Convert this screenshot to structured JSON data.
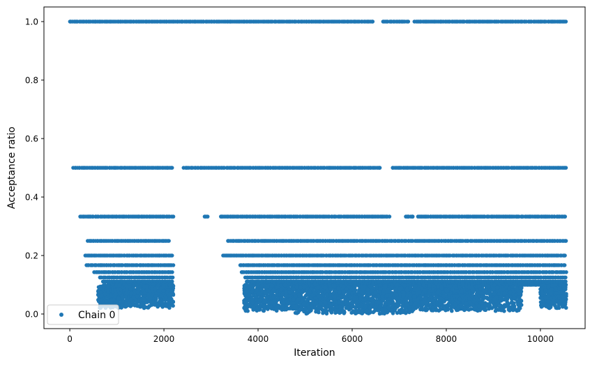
{
  "chart_data": {
    "type": "scatter",
    "xlabel": "Iteration",
    "ylabel": "Acceptance ratio",
    "xlim": [
      -550,
      10950
    ],
    "ylim": [
      -0.05,
      1.05
    ],
    "xticks": [
      0,
      2000,
      4000,
      6000,
      8000,
      10000
    ],
    "xtick_labels": [
      "0",
      "2000",
      "4000",
      "6000",
      "8000",
      "10000"
    ],
    "yticks": [
      0.0,
      0.2,
      0.4,
      0.6,
      0.8,
      1.0
    ],
    "ytick_labels": [
      "0.0",
      "0.2",
      "0.4",
      "0.6",
      "0.8",
      "1.0"
    ],
    "grid": false,
    "legend": {
      "position": "lower-left",
      "entries": [
        "Chain 0"
      ]
    },
    "series": [
      {
        "name": "Chain 0",
        "color": "#1f77b4",
        "marker": "circle",
        "levels": [
          {
            "y": 1.0,
            "x_ranges": [
              [
                0,
                6450
              ],
              [
                6650,
                7200
              ],
              [
                7300,
                10550
              ]
            ]
          },
          {
            "y": 0.5,
            "x_ranges": [
              [
                50,
                2200
              ],
              [
                2400,
                6600
              ],
              [
                6850,
                10550
              ]
            ]
          },
          {
            "y": 0.333,
            "x_ranges": [
              [
                200,
                2200
              ],
              [
                2850,
                2950
              ],
              [
                3200,
                6800
              ],
              [
                7100,
                7300
              ],
              [
                7400,
                10550
              ]
            ]
          },
          {
            "y": 0.25,
            "x_ranges": [
              [
                350,
                2150
              ],
              [
                3350,
                10550
              ]
            ]
          },
          {
            "y": 0.2,
            "x_ranges": [
              [
                300,
                2200
              ],
              [
                3250,
                10550
              ]
            ]
          },
          {
            "y": 0.167,
            "x_ranges": [
              [
                350,
                2200
              ],
              [
                3600,
                10550
              ]
            ]
          },
          {
            "y": 0.143,
            "x_ranges": [
              [
                500,
                2200
              ],
              [
                3650,
                10550
              ]
            ]
          },
          {
            "y": 0.125,
            "x_ranges": [
              [
                600,
                2200
              ],
              [
                3700,
                10550
              ]
            ]
          },
          {
            "y": 0.111,
            "x_ranges": [
              [
                700,
                2200
              ],
              [
                3750,
                10550
              ]
            ]
          },
          {
            "y": 0.1,
            "x_ranges": [
              [
                800,
                2200
              ],
              [
                3800,
                10550
              ]
            ]
          }
        ],
        "clusters": [
          {
            "x_range": [
              600,
              2200
            ],
            "y_range": [
              0.02,
              0.1
            ]
          },
          {
            "x_range": [
              3700,
              4750
            ],
            "y_range": [
              0.01,
              0.1
            ]
          },
          {
            "x_range": [
              4750,
              7300
            ],
            "y_range": [
              0.0,
              0.1
            ]
          },
          {
            "x_range": [
              7300,
              9600
            ],
            "y_range": [
              0.01,
              0.1
            ]
          },
          {
            "x_range": [
              10000,
              10550
            ],
            "y_range": [
              0.02,
              0.1
            ]
          }
        ]
      }
    ]
  }
}
